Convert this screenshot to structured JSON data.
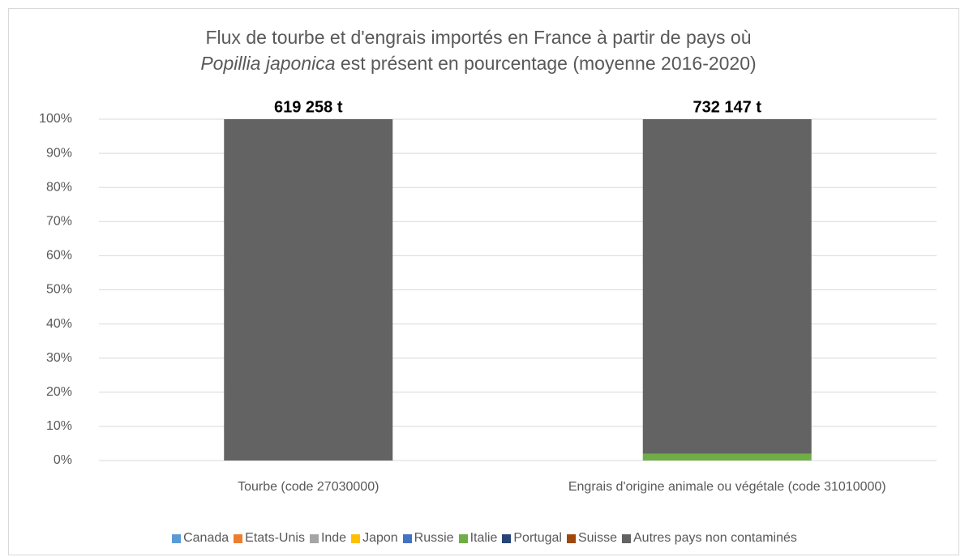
{
  "chart_data": {
    "type": "stacked_bar",
    "title": [
      {
        "text": "Flux de tourbe et d'engrais importés en France à partir de pays où ",
        "italic": false
      },
      {
        "text": "Popillia japonica",
        "italic": true
      },
      {
        "text": " est présent en pourcentage (moyenne 2016-2020)",
        "italic": false
      }
    ],
    "categories": [
      "Tourbe (code 27030000)",
      "Engrais d'origine animale ou végétale (code 31010000)"
    ],
    "bar_labels": [
      "619 258 t",
      "732 147 t"
    ],
    "series": [
      {
        "name": "Canada",
        "color": "#5b9bd5",
        "values": [
          0,
          0
        ]
      },
      {
        "name": "Etats-Unis",
        "color": "#ed7d31",
        "values": [
          0,
          0
        ]
      },
      {
        "name": "Inde",
        "color": "#a5a5a5",
        "values": [
          0,
          0
        ]
      },
      {
        "name": "Japon",
        "color": "#ffc000",
        "values": [
          0,
          0
        ]
      },
      {
        "name": "Russie",
        "color": "#4472c4",
        "values": [
          0,
          0
        ]
      },
      {
        "name": "Italie",
        "color": "#70ad47",
        "values": [
          0,
          2
        ]
      },
      {
        "name": "Portugal",
        "color": "#264478",
        "values": [
          0,
          0
        ]
      },
      {
        "name": "Suisse",
        "color": "#9e480e",
        "values": [
          0,
          0
        ]
      },
      {
        "name": "Autres pays non contaminés",
        "color": "#636363",
        "values": [
          100,
          98
        ]
      }
    ],
    "ylim": [
      0,
      100
    ],
    "yticks": [
      {
        "value": 0,
        "label": "0%"
      },
      {
        "value": 10,
        "label": "10%"
      },
      {
        "value": 20,
        "label": "20%"
      },
      {
        "value": 30,
        "label": "30%"
      },
      {
        "value": 40,
        "label": "40%"
      },
      {
        "value": 50,
        "label": "50%"
      },
      {
        "value": 60,
        "label": "60%"
      },
      {
        "value": 70,
        "label": "70%"
      },
      {
        "value": 80,
        "label": "80%"
      },
      {
        "value": 90,
        "label": "90%"
      },
      {
        "value": 100,
        "label": "100%"
      }
    ],
    "grid": true,
    "legend": "bottom"
  }
}
